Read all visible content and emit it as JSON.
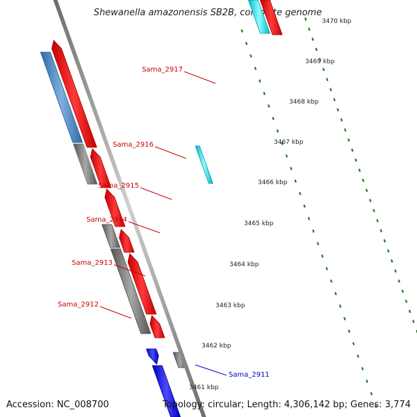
{
  "title": "Shewanella amazonensis SB2B, complete genome",
  "footer": {
    "accession": "Accession: NC_008700",
    "summary": "Topology: circular; Length: 4,306,142 bp; Genes: 3,774"
  },
  "colors": {
    "forward_cds": "#ff0000",
    "reverse_cds": "#888888",
    "steel_blue": "#4a86c0",
    "cyan": "#00e0f0",
    "blue": "#0000ee",
    "label_red": "#cc0000",
    "label_blue": "#0000cc",
    "tick_green": "#1a7a1a",
    "backbone": "#8c8c8c"
  },
  "kbp_labels": [
    "3470 kbp",
    "3469 kbp",
    "3468 kbp",
    "3467 kbp",
    "3466 kbp",
    "3465 kbp",
    "3464 kbp",
    "3463 kbp",
    "3462 kbp",
    "3461 kbp"
  ],
  "genes": [
    {
      "label": "Sama_2917",
      "color": "label_red"
    },
    {
      "label": "Sama_2916",
      "color": "label_red"
    },
    {
      "label": "Sama_2915",
      "color": "label_red"
    },
    {
      "label": "Sama_2914",
      "color": "label_red"
    },
    {
      "label": "Sama_2913",
      "color": "label_red"
    },
    {
      "label": "Sama_2912",
      "color": "label_red"
    },
    {
      "label": "Sama_2911",
      "color": "label_blue"
    }
  ]
}
